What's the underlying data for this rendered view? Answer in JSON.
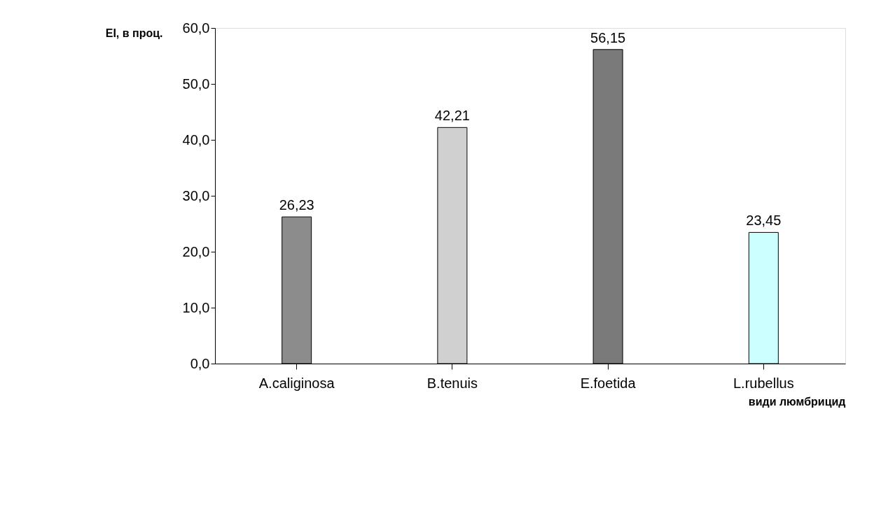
{
  "chart_data": {
    "type": "bar",
    "xlabel": "види люмбрицид",
    "ylabel": "EI, в проц.",
    "categories": [
      "A.caliginosa",
      "B.tenuis",
      "E.foetida",
      "L.rubellus"
    ],
    "values": [
      26.23,
      42.21,
      56.15,
      23.45
    ],
    "colors": [
      "#8c8c8c",
      "#d0d0d0",
      "#7a7a7a",
      "#ccffff"
    ],
    "value_labels": [
      "26,23",
      "42,21",
      "56,15",
      "23,45"
    ],
    "ylim": [
      0,
      60
    ],
    "yticks": [
      {
        "value": 0,
        "label": "0,0"
      },
      {
        "value": 10,
        "label": "10,0"
      },
      {
        "value": 20,
        "label": "20,0"
      },
      {
        "value": 30,
        "label": "30,0"
      },
      {
        "value": 40,
        "label": "40,0"
      },
      {
        "value": 50,
        "label": "50,0"
      },
      {
        "value": 60,
        "label": "60,0"
      }
    ],
    "grid": false
  }
}
